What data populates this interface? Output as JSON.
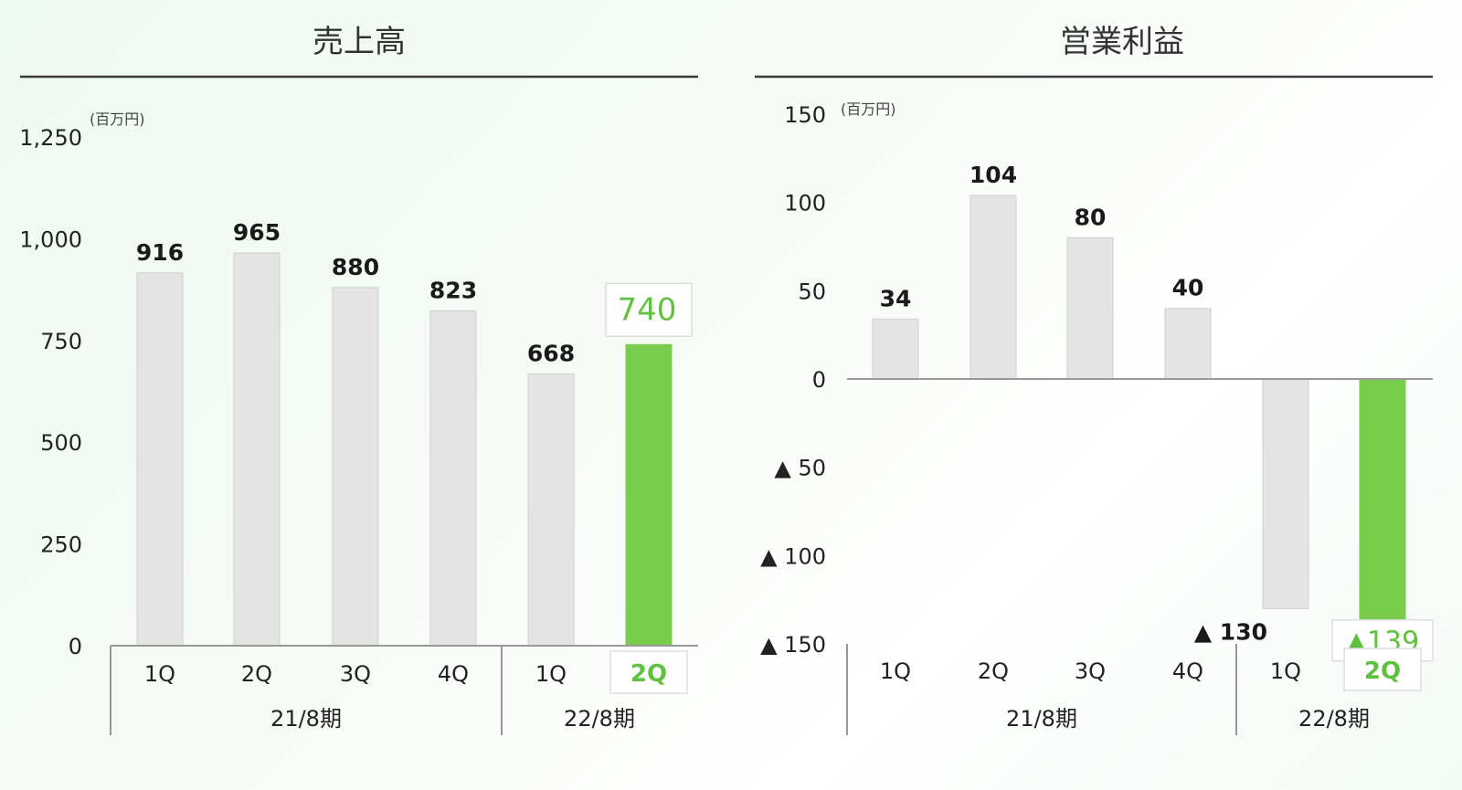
{
  "chart_data": [
    {
      "type": "bar",
      "title": "売上高",
      "unit": "(百万円)",
      "categories": [
        "1Q",
        "2Q",
        "3Q",
        "4Q",
        "1Q",
        "2Q"
      ],
      "groups": [
        {
          "label": "21/8期",
          "categories": [
            "1Q",
            "2Q",
            "3Q",
            "4Q"
          ]
        },
        {
          "label": "22/8期",
          "categories": [
            "1Q",
            "2Q"
          ]
        }
      ],
      "values": [
        916,
        965,
        880,
        823,
        668,
        740
      ],
      "value_labels": [
        "916",
        "965",
        "880",
        "823",
        "668",
        "740"
      ],
      "highlight_index": 5,
      "ylim": [
        0,
        1250
      ],
      "yticks": [
        0,
        250,
        500,
        750,
        1000,
        1250
      ],
      "ytick_labels": [
        "0",
        "250",
        "500",
        "750",
        "1,000",
        "1,250"
      ],
      "grid": false,
      "legend": "none"
    },
    {
      "type": "bar",
      "title": "営業利益",
      "unit": "(百万円)",
      "categories": [
        "1Q",
        "2Q",
        "3Q",
        "4Q",
        "1Q",
        "2Q"
      ],
      "groups": [
        {
          "label": "21/8期",
          "categories": [
            "1Q",
            "2Q",
            "3Q",
            "4Q"
          ]
        },
        {
          "label": "22/8期",
          "categories": [
            "1Q",
            "2Q"
          ]
        }
      ],
      "values": [
        34,
        104,
        80,
        40,
        -130,
        -139
      ],
      "value_labels": [
        "34",
        "104",
        "80",
        "40",
        "▲ 130",
        "▲139"
      ],
      "highlight_index": 5,
      "ylim": [
        -150,
        150
      ],
      "yticks": [
        -150,
        -100,
        -50,
        0,
        50,
        100,
        150
      ],
      "ytick_labels": [
        "▲ 150",
        "▲ 100",
        "▲ 50",
        "0",
        "50",
        "100",
        "150"
      ],
      "grid": false,
      "legend": "none"
    }
  ],
  "colors": {
    "bar": "#e4e4e4",
    "bar_stroke": "#cfcfcf",
    "highlight": "#7acc4c",
    "highlight_text": "#5ec23e",
    "rule": "#3a3a3a",
    "axis": "#999999"
  }
}
